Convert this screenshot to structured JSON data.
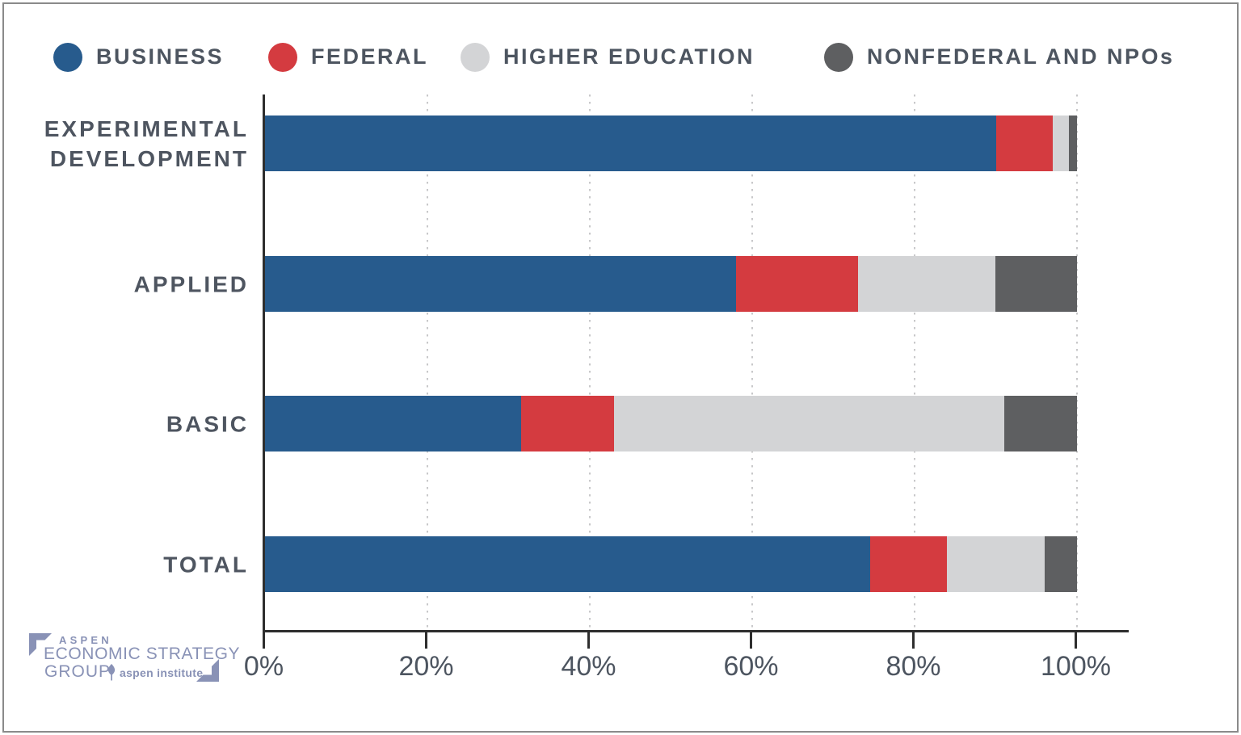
{
  "legend": {
    "items": [
      {
        "label": "BUSINESS",
        "color": "#275b8d"
      },
      {
        "label": "FEDERAL",
        "color": "#d43b40"
      },
      {
        "label": "HIGHER EDUCATION",
        "color": "#d3d4d6"
      },
      {
        "label": "NONFEDERAL AND NPOs",
        "color": "#5e5f61"
      }
    ]
  },
  "chart_data": {
    "type": "bar",
    "orientation": "horizontal",
    "stacked": true,
    "title": "",
    "xlabel": "",
    "ylabel": "",
    "categories": [
      "EXPERIMENTAL\nDEVELOPMENT",
      "APPLIED",
      "BASIC",
      "TOTAL"
    ],
    "series": [
      {
        "name": "BUSINESS",
        "color": "#275b8d",
        "values": [
          90,
          58,
          31.5,
          74.5
        ]
      },
      {
        "name": "FEDERAL",
        "color": "#d43b40",
        "values": [
          7,
          15,
          11.5,
          9.5
        ]
      },
      {
        "name": "HIGHER EDUCATION",
        "color": "#d3d4d6",
        "values": [
          2,
          17,
          48,
          12
        ]
      },
      {
        "name": "NONFEDERAL AND NPOs",
        "color": "#5e5f61",
        "values": [
          1,
          10,
          9,
          4
        ]
      }
    ],
    "xlim": [
      0,
      100
    ],
    "x_ticks": [
      "0%",
      "20%",
      "40%",
      "60%",
      "80%",
      "100%"
    ],
    "x_tick_values": [
      0,
      20,
      40,
      60,
      80,
      100
    ],
    "grid": "dotted-vertical",
    "legend_position": "top"
  },
  "logo": {
    "line1": "ASPEN",
    "line2": "ECONOMIC STRATEGY",
    "line3": "GROUP",
    "institute": "aspen institute",
    "color": "#8992b6"
  }
}
